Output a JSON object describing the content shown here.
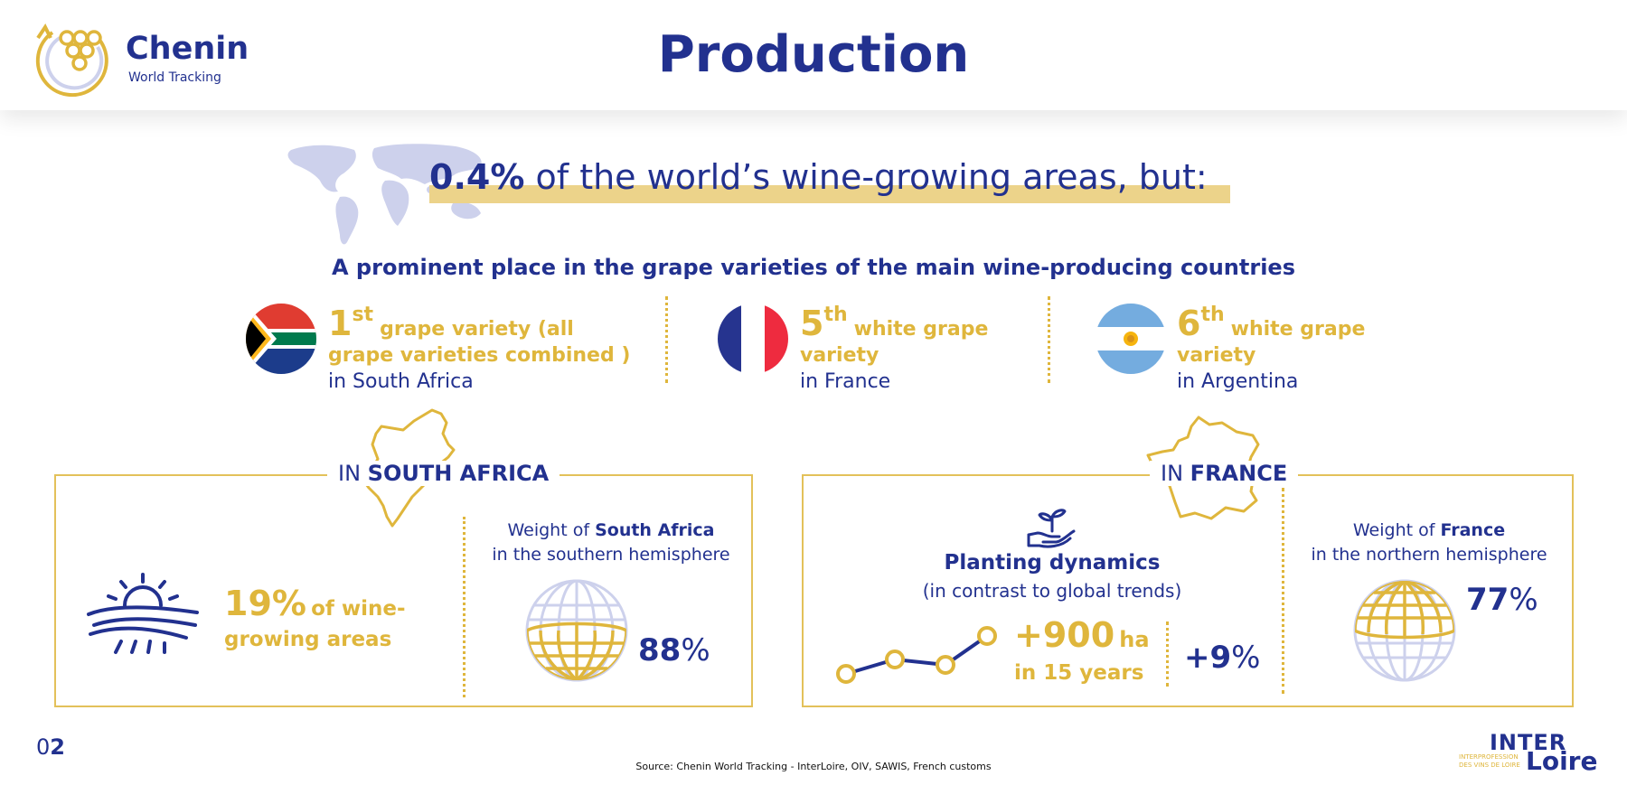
{
  "brand": {
    "name": "Chenin",
    "subtitle": "World Tracking"
  },
  "title": "Production",
  "headline": {
    "value": "0.4%",
    "text": "of the world’s wine-growing areas, but:"
  },
  "subheading": "A prominent place in the grape varieties of the main wine-producing countries",
  "rankings": [
    {
      "rank_num": "1",
      "rank_suffix": "st",
      "desc_line1": "grape variety (all",
      "desc_line2": "grape varieties combined )",
      "where": "in South Africa"
    },
    {
      "rank_num": "5",
      "rank_suffix": "th",
      "desc_line1": "white grape",
      "desc_line2": "variety",
      "where": "in France"
    },
    {
      "rank_num": "6",
      "rank_suffix": "th",
      "desc_line1": "white grape",
      "desc_line2": "variety",
      "where": "in Argentina"
    }
  ],
  "south_africa": {
    "label_prefix": "IN",
    "label_name": "SOUTH AFRICA",
    "area_pct": "19%",
    "area_text_line1": "of wine-",
    "area_text_line2": "growing areas",
    "weight_prefix": "Weight of",
    "weight_name": "South Africa",
    "weight_line2": "in the southern hemisphere",
    "weight_value": "88",
    "weight_unit": "%"
  },
  "france": {
    "label_prefix": "IN",
    "label_name": "FRANCE",
    "planting_title": "Planting dynamics",
    "planting_sub": "(in contrast to global trends)",
    "ha_value": "+900",
    "ha_unit": "ha",
    "ha_period": "in 15 years",
    "growth_value": "+9",
    "growth_unit": "%",
    "weight_prefix": "Weight of",
    "weight_name": "France",
    "weight_line2": "in the northern hemisphere",
    "weight_value": "77",
    "weight_unit": "%"
  },
  "footer": {
    "page_prefix": "0",
    "page_number": "2",
    "source": "Source: Chenin World Tracking - InterLoire, OIV, SAWIS, French customs",
    "logo_top": "INTER",
    "logo_bottom": "Loire",
    "logo_tag_line1": "INTERPROFESSION",
    "logo_tag_line2": "DES VINS DE LOIRE"
  },
  "colors": {
    "navy": "#22318f",
    "gold": "#dfb63c",
    "highlight": "#ecd38a",
    "map": "#cdd1ec"
  }
}
